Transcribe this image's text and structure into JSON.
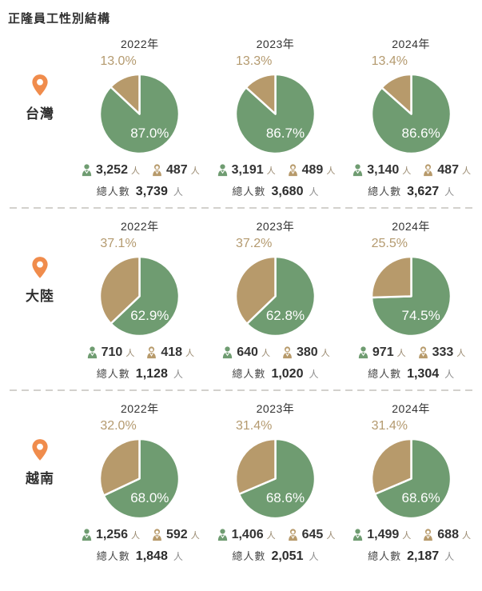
{
  "page": {
    "title": "正隆員工性別結構"
  },
  "labels": {
    "total": "總人數",
    "unit": "人"
  },
  "colors": {
    "male": "#6f9c71",
    "female": "#b79a6b",
    "pin": "#f08c4c",
    "female_label": "#b49a6f"
  },
  "chart_data": {
    "type": "pie",
    "title": "正隆員工性別結構",
    "unit": "人",
    "legend_position": "none",
    "rows": [
      {
        "region": "台灣",
        "charts": [
          {
            "year": "2022年",
            "male_pct": 87.0,
            "female_pct": 13.0,
            "male_count": "3,252",
            "female_count": "487",
            "total": "3,739"
          },
          {
            "year": "2023年",
            "male_pct": 86.7,
            "female_pct": 13.3,
            "male_count": "3,191",
            "female_count": "489",
            "total": "3,680"
          },
          {
            "year": "2024年",
            "male_pct": 86.6,
            "female_pct": 13.4,
            "male_count": "3,140",
            "female_count": "487",
            "total": "3,627"
          }
        ]
      },
      {
        "region": "大陸",
        "charts": [
          {
            "year": "2022年",
            "male_pct": 62.9,
            "female_pct": 37.1,
            "male_count": "710",
            "female_count": "418",
            "total": "1,128"
          },
          {
            "year": "2023年",
            "male_pct": 62.8,
            "female_pct": 37.2,
            "male_count": "640",
            "female_count": "380",
            "total": "1,020"
          },
          {
            "year": "2024年",
            "male_pct": 74.5,
            "female_pct": 25.5,
            "male_count": "971",
            "female_count": "333",
            "total": "1,304"
          }
        ]
      },
      {
        "region": "越南",
        "charts": [
          {
            "year": "2022年",
            "male_pct": 68.0,
            "female_pct": 32.0,
            "male_count": "1,256",
            "female_count": "592",
            "total": "1,848"
          },
          {
            "year": "2023年",
            "male_pct": 68.6,
            "female_pct": 31.4,
            "male_count": "1,406",
            "female_count": "645",
            "total": "2,051"
          },
          {
            "year": "2024年",
            "male_pct": 68.6,
            "female_pct": 31.4,
            "male_count": "1,499",
            "female_count": "688",
            "total": "2,187"
          }
        ]
      }
    ]
  }
}
